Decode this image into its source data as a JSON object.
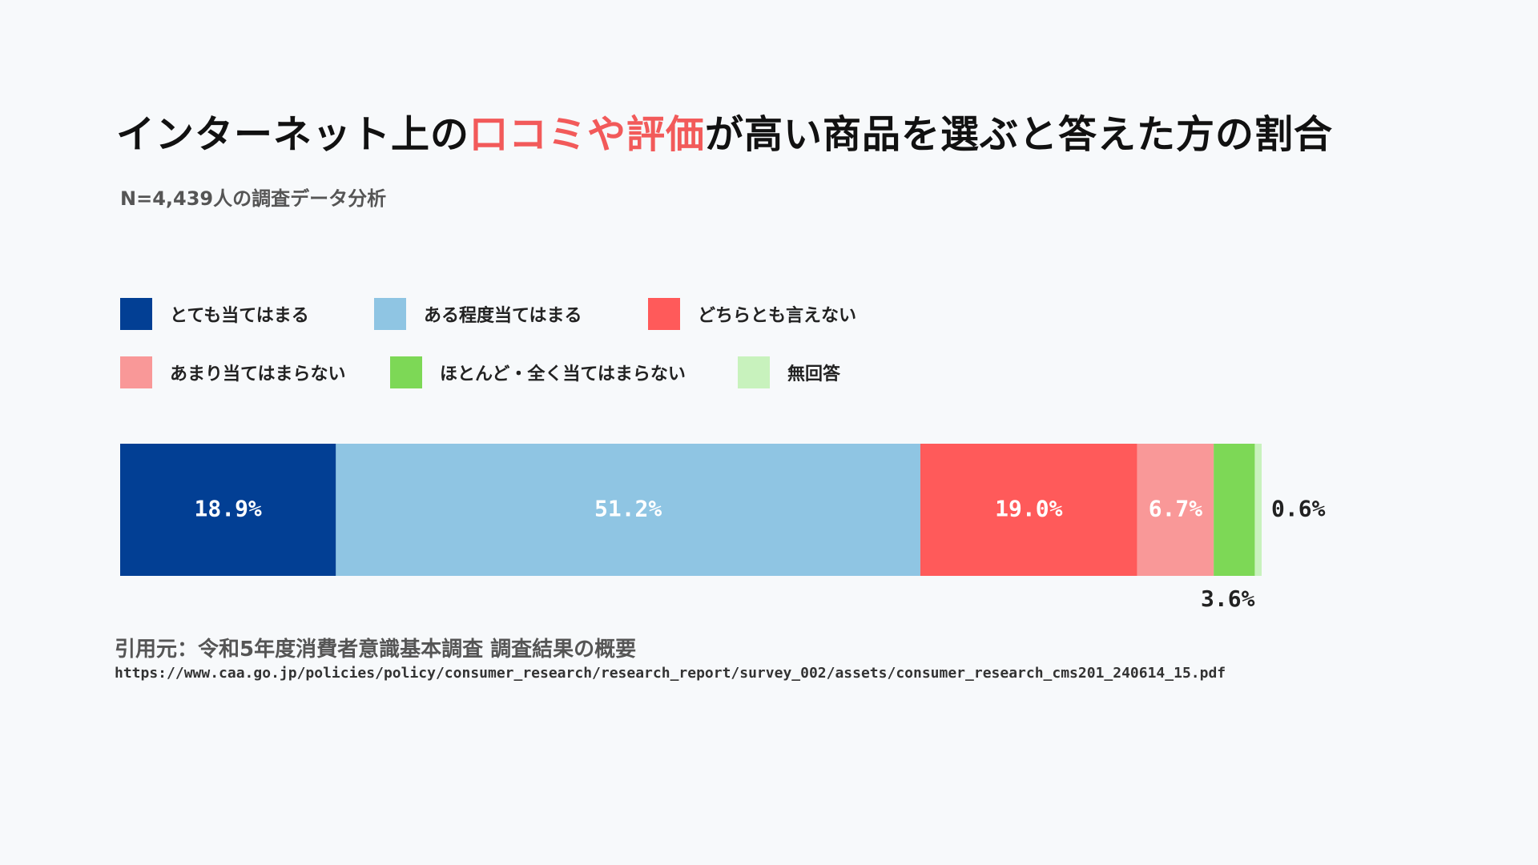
{
  "title": {
    "part1": "インターネット上の",
    "highlight": "口コミや評価",
    "part2": "が高い商品を選ぶと答えた方の割合"
  },
  "subtitle": "N=4,439人の調査データ分析",
  "colors": {
    "highlight": "#f25a5a"
  },
  "chart_data": {
    "type": "bar",
    "orientation": "horizontal-stacked-100",
    "series": [
      {
        "name": "とても当てはまる",
        "value": 18.9,
        "label": "18.9%",
        "color": "#023f94"
      },
      {
        "name": "ある程度当てはまる",
        "value": 51.2,
        "label": "51.2%",
        "color": "#8fc5e3"
      },
      {
        "name": "どちらとも言えない",
        "value": 19.0,
        "label": "19.0%",
        "color": "#ff5a5a"
      },
      {
        "name": "あまり当てはまらない",
        "value": 6.7,
        "label": "6.7%",
        "color": "#f99898"
      },
      {
        "name": "ほとんど・全く当てはまらない",
        "value": 3.6,
        "label": "3.6%",
        "color": "#7dd856"
      },
      {
        "name": "無回答",
        "value": 0.6,
        "label": "0.6%",
        "color": "#c8f2bd"
      }
    ],
    "legend_position": "top"
  },
  "source": {
    "citation": "引用元：令和5年度消費者意識基本調査 調査結果の概要",
    "url": "https://www.caa.go.jp/policies/policy/consumer_research/research_report/survey_002/assets/consumer_research_cms201_240614_15.pdf"
  }
}
